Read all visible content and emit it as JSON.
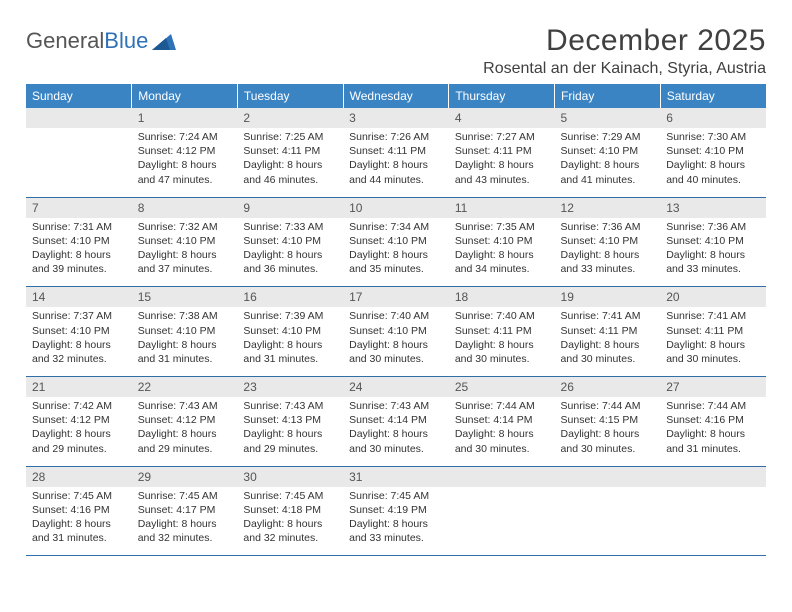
{
  "brand": {
    "part1": "General",
    "part2": "Blue"
  },
  "title": "December 2025",
  "location": "Rosental an der Kainach, Styria, Austria",
  "colors": {
    "header_bg": "#3b84c4",
    "header_text": "#ffffff",
    "daynum_bg": "#e9e9e9",
    "rule": "#2f6ea8",
    "text": "#333333",
    "logo_gray": "#555555",
    "logo_blue": "#2f72b8"
  },
  "weekdays": [
    "Sunday",
    "Monday",
    "Tuesday",
    "Wednesday",
    "Thursday",
    "Friday",
    "Saturday"
  ],
  "weeks": [
    [
      null,
      {
        "d": "1",
        "sr": "7:24 AM",
        "ss": "4:12 PM",
        "dl": "8 hours and 47 minutes."
      },
      {
        "d": "2",
        "sr": "7:25 AM",
        "ss": "4:11 PM",
        "dl": "8 hours and 46 minutes."
      },
      {
        "d": "3",
        "sr": "7:26 AM",
        "ss": "4:11 PM",
        "dl": "8 hours and 44 minutes."
      },
      {
        "d": "4",
        "sr": "7:27 AM",
        "ss": "4:11 PM",
        "dl": "8 hours and 43 minutes."
      },
      {
        "d": "5",
        "sr": "7:29 AM",
        "ss": "4:10 PM",
        "dl": "8 hours and 41 minutes."
      },
      {
        "d": "6",
        "sr": "7:30 AM",
        "ss": "4:10 PM",
        "dl": "8 hours and 40 minutes."
      }
    ],
    [
      {
        "d": "7",
        "sr": "7:31 AM",
        "ss": "4:10 PM",
        "dl": "8 hours and 39 minutes."
      },
      {
        "d": "8",
        "sr": "7:32 AM",
        "ss": "4:10 PM",
        "dl": "8 hours and 37 minutes."
      },
      {
        "d": "9",
        "sr": "7:33 AM",
        "ss": "4:10 PM",
        "dl": "8 hours and 36 minutes."
      },
      {
        "d": "10",
        "sr": "7:34 AM",
        "ss": "4:10 PM",
        "dl": "8 hours and 35 minutes."
      },
      {
        "d": "11",
        "sr": "7:35 AM",
        "ss": "4:10 PM",
        "dl": "8 hours and 34 minutes."
      },
      {
        "d": "12",
        "sr": "7:36 AM",
        "ss": "4:10 PM",
        "dl": "8 hours and 33 minutes."
      },
      {
        "d": "13",
        "sr": "7:36 AM",
        "ss": "4:10 PM",
        "dl": "8 hours and 33 minutes."
      }
    ],
    [
      {
        "d": "14",
        "sr": "7:37 AM",
        "ss": "4:10 PM",
        "dl": "8 hours and 32 minutes."
      },
      {
        "d": "15",
        "sr": "7:38 AM",
        "ss": "4:10 PM",
        "dl": "8 hours and 31 minutes."
      },
      {
        "d": "16",
        "sr": "7:39 AM",
        "ss": "4:10 PM",
        "dl": "8 hours and 31 minutes."
      },
      {
        "d": "17",
        "sr": "7:40 AM",
        "ss": "4:10 PM",
        "dl": "8 hours and 30 minutes."
      },
      {
        "d": "18",
        "sr": "7:40 AM",
        "ss": "4:11 PM",
        "dl": "8 hours and 30 minutes."
      },
      {
        "d": "19",
        "sr": "7:41 AM",
        "ss": "4:11 PM",
        "dl": "8 hours and 30 minutes."
      },
      {
        "d": "20",
        "sr": "7:41 AM",
        "ss": "4:11 PM",
        "dl": "8 hours and 30 minutes."
      }
    ],
    [
      {
        "d": "21",
        "sr": "7:42 AM",
        "ss": "4:12 PM",
        "dl": "8 hours and 29 minutes."
      },
      {
        "d": "22",
        "sr": "7:43 AM",
        "ss": "4:12 PM",
        "dl": "8 hours and 29 minutes."
      },
      {
        "d": "23",
        "sr": "7:43 AM",
        "ss": "4:13 PM",
        "dl": "8 hours and 29 minutes."
      },
      {
        "d": "24",
        "sr": "7:43 AM",
        "ss": "4:14 PM",
        "dl": "8 hours and 30 minutes."
      },
      {
        "d": "25",
        "sr": "7:44 AM",
        "ss": "4:14 PM",
        "dl": "8 hours and 30 minutes."
      },
      {
        "d": "26",
        "sr": "7:44 AM",
        "ss": "4:15 PM",
        "dl": "8 hours and 30 minutes."
      },
      {
        "d": "27",
        "sr": "7:44 AM",
        "ss": "4:16 PM",
        "dl": "8 hours and 31 minutes."
      }
    ],
    [
      {
        "d": "28",
        "sr": "7:45 AM",
        "ss": "4:16 PM",
        "dl": "8 hours and 31 minutes."
      },
      {
        "d": "29",
        "sr": "7:45 AM",
        "ss": "4:17 PM",
        "dl": "8 hours and 32 minutes."
      },
      {
        "d": "30",
        "sr": "7:45 AM",
        "ss": "4:18 PM",
        "dl": "8 hours and 32 minutes."
      },
      {
        "d": "31",
        "sr": "7:45 AM",
        "ss": "4:19 PM",
        "dl": "8 hours and 33 minutes."
      },
      null,
      null,
      null
    ]
  ],
  "labels": {
    "sunrise": "Sunrise:",
    "sunset": "Sunset:",
    "daylight": "Daylight:"
  }
}
